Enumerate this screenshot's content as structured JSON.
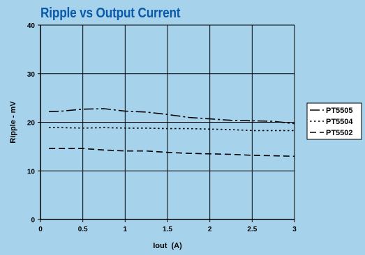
{
  "chart_data": {
    "type": "line",
    "title": "Ripple vs Output Current",
    "xlabel": "Iout  (A)",
    "ylabel": "Ripple - mV",
    "xlim": [
      0,
      3
    ],
    "ylim": [
      0,
      40
    ],
    "xticks": [
      "0",
      "0.5",
      "1",
      "1.5",
      "2",
      "2.5",
      "3"
    ],
    "yticks": [
      "0",
      "10",
      "20",
      "30",
      "40"
    ],
    "grid": true,
    "legend_position": "right",
    "series": [
      {
        "name": "PT5505",
        "style": "dash-dot",
        "x": [
          0.1,
          0.25,
          0.5,
          0.75,
          1.0,
          1.25,
          1.5,
          1.75,
          2.0,
          2.25,
          2.5,
          2.75,
          3.0
        ],
        "y": [
          22.2,
          22.3,
          22.7,
          22.8,
          22.3,
          22.1,
          21.6,
          21.0,
          20.7,
          20.4,
          20.3,
          20.2,
          19.7
        ]
      },
      {
        "name": "PT5504",
        "style": "dotted",
        "x": [
          0.1,
          0.25,
          0.5,
          0.75,
          1.0,
          1.25,
          1.5,
          1.75,
          2.0,
          2.25,
          2.5,
          2.75,
          3.0
        ],
        "y": [
          18.9,
          18.9,
          18.8,
          18.9,
          18.8,
          18.8,
          18.7,
          18.7,
          18.6,
          18.5,
          18.3,
          18.3,
          18.3
        ]
      },
      {
        "name": "PT5502",
        "style": "long-dash",
        "x": [
          0.1,
          0.25,
          0.5,
          0.75,
          1.0,
          1.25,
          1.5,
          1.75,
          2.0,
          2.25,
          2.5,
          2.75,
          3.0
        ],
        "y": [
          14.6,
          14.6,
          14.6,
          14.3,
          14.1,
          14.1,
          13.8,
          13.6,
          13.5,
          13.4,
          13.2,
          13.1,
          13.0
        ]
      }
    ]
  },
  "colors": {
    "background": "#a6d2eb",
    "title": "#0a5aa8",
    "grid": "#000000",
    "lines": "#000000",
    "legend_bg": "#ffffff"
  }
}
